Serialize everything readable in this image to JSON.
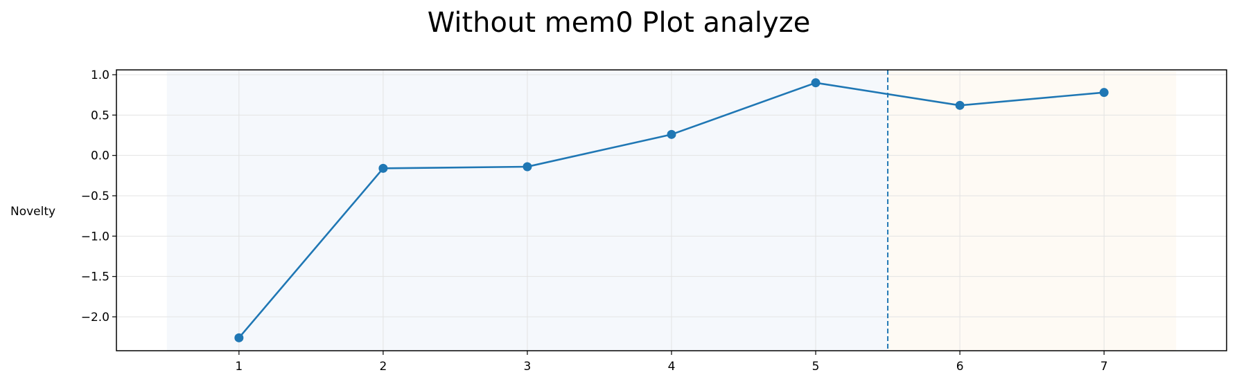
{
  "chart_data": {
    "type": "line",
    "title": "Without mem0 Plot analyze",
    "xlabel": "",
    "ylabel": "Novelty",
    "x": [
      1,
      2,
      3,
      4,
      5,
      6,
      7
    ],
    "series": [
      {
        "values": [
          -2.26,
          -0.16,
          -0.14,
          0.26,
          0.9,
          0.62,
          0.78
        ],
        "color": "#1f77b4"
      }
    ],
    "xticks": [
      1,
      2,
      3,
      4,
      5,
      6,
      7
    ],
    "yticks": [
      -2.0,
      -1.5,
      -1.0,
      -0.5,
      0.0,
      0.5,
      1.0
    ],
    "ytick_labels": [
      "−2.0",
      "−1.5",
      "−1.0",
      "−0.5",
      "0.0",
      "0.5",
      "1.0"
    ],
    "xlim": [
      0.15,
      7.85
    ],
    "ylim": [
      -2.42,
      1.06
    ],
    "grid": true,
    "shaded_regions": [
      {
        "x_start": 0.5,
        "x_end": 5.5,
        "color": "#f5f8fc"
      },
      {
        "x_start": 5.5,
        "x_end": 7.5,
        "color": "#fefaf4"
      }
    ],
    "vertical_line": {
      "x": 5.5,
      "style": "dashed",
      "color": "#1f77b4"
    }
  }
}
